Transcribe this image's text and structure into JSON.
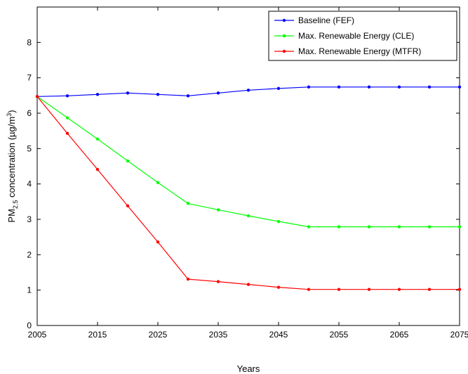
{
  "chart_data": {
    "type": "line",
    "xlabel": "Years",
    "ylabel": {
      "prefix": "PM",
      "subscript": "2.5",
      "middle": " concentration (µg/m",
      "superscript": "3",
      "suffix": ")"
    },
    "xlim": [
      2005,
      2075
    ],
    "ylim": [
      0,
      9
    ],
    "x_ticks": [
      2005,
      2015,
      2025,
      2035,
      2045,
      2055,
      2065,
      2075
    ],
    "x_tick_labels": [
      "2005",
      "2015",
      "2025",
      "2035",
      "2045",
      "2055",
      "2065",
      "2075"
    ],
    "y_ticks": [
      0,
      1,
      2,
      3,
      4,
      5,
      6,
      7,
      8
    ],
    "y_tick_labels": [
      "0",
      "1",
      "2",
      "3",
      "4",
      "5",
      "6",
      "7",
      "8"
    ],
    "grid": true,
    "legend_position": "top-right",
    "x": [
      2005,
      2010,
      2015,
      2020,
      2025,
      2030,
      2035,
      2040,
      2045,
      2050,
      2055,
      2060,
      2065,
      2070,
      2075
    ],
    "series": [
      {
        "name": "Baseline (FEF)",
        "color": "#0000ff",
        "values": [
          6.47,
          6.49,
          6.53,
          6.57,
          6.53,
          6.49,
          6.57,
          6.65,
          6.7,
          6.74,
          6.74,
          6.74,
          6.74,
          6.74,
          6.74
        ]
      },
      {
        "name": "Max. Renewable Energy (CLE)",
        "color": "#00ff00",
        "values": [
          6.47,
          5.87,
          5.27,
          4.65,
          4.04,
          3.45,
          3.27,
          3.1,
          2.94,
          2.79,
          2.79,
          2.79,
          2.79,
          2.79,
          2.79
        ]
      },
      {
        "name": "Max. Renewable Energy (MTFR)",
        "color": "#ff0000",
        "values": [
          6.47,
          5.43,
          4.41,
          3.38,
          2.36,
          1.31,
          1.24,
          1.16,
          1.08,
          1.02,
          1.02,
          1.02,
          1.02,
          1.02,
          1.02
        ]
      }
    ]
  }
}
